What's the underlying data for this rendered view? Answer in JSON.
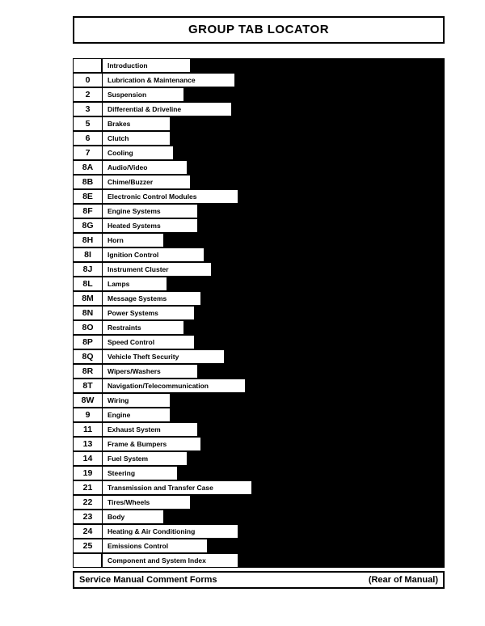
{
  "title": "GROUP TAB LOCATOR",
  "label_base_width": 60,
  "label_char_width": 4.2,
  "rows": [
    {
      "num": "",
      "label": "Introduction"
    },
    {
      "num": "0",
      "label": "Lubrication & Maintenance"
    },
    {
      "num": "2",
      "label": "Suspension"
    },
    {
      "num": "3",
      "label": "Differential & Driveline"
    },
    {
      "num": "5",
      "label": "Brakes"
    },
    {
      "num": "6",
      "label": "Clutch"
    },
    {
      "num": "7",
      "label": "Cooling"
    },
    {
      "num": "8A",
      "label": "Audio/Video"
    },
    {
      "num": "8B",
      "label": "Chime/Buzzer"
    },
    {
      "num": "8E",
      "label": "Electronic Control Modules"
    },
    {
      "num": "8F",
      "label": "Engine Systems"
    },
    {
      "num": "8G",
      "label": "Heated Systems"
    },
    {
      "num": "8H",
      "label": "Horn"
    },
    {
      "num": "8I",
      "label": "Ignition Control"
    },
    {
      "num": "8J",
      "label": "Instrument Cluster"
    },
    {
      "num": "8L",
      "label": "Lamps"
    },
    {
      "num": "8M",
      "label": "Message Systems"
    },
    {
      "num": "8N",
      "label": "Power Systems"
    },
    {
      "num": "8O",
      "label": "Restraints"
    },
    {
      "num": "8P",
      "label": "Speed Control"
    },
    {
      "num": "8Q",
      "label": "Vehicle Theft Security"
    },
    {
      "num": "8R",
      "label": "Wipers/Washers"
    },
    {
      "num": "8T",
      "label": "Navigation/Telecommunication"
    },
    {
      "num": "8W",
      "label": "Wiring"
    },
    {
      "num": "9",
      "label": "Engine"
    },
    {
      "num": "11",
      "label": "Exhaust System"
    },
    {
      "num": "13",
      "label": "Frame & Bumpers"
    },
    {
      "num": "14",
      "label": "Fuel System"
    },
    {
      "num": "19",
      "label": "Steering"
    },
    {
      "num": "21",
      "label": "Transmission and Transfer Case"
    },
    {
      "num": "22",
      "label": "Tires/Wheels"
    },
    {
      "num": "23",
      "label": "Body"
    },
    {
      "num": "24",
      "label": "Heating & Air Conditioning"
    },
    {
      "num": "25",
      "label": "Emissions Control"
    },
    {
      "num": "",
      "label": "Component and System Index"
    }
  ],
  "footer_left": "Service Manual Comment Forms",
  "footer_right": "(Rear of Manual)",
  "colors": {
    "bg": "#ffffff",
    "ink": "#000000"
  }
}
